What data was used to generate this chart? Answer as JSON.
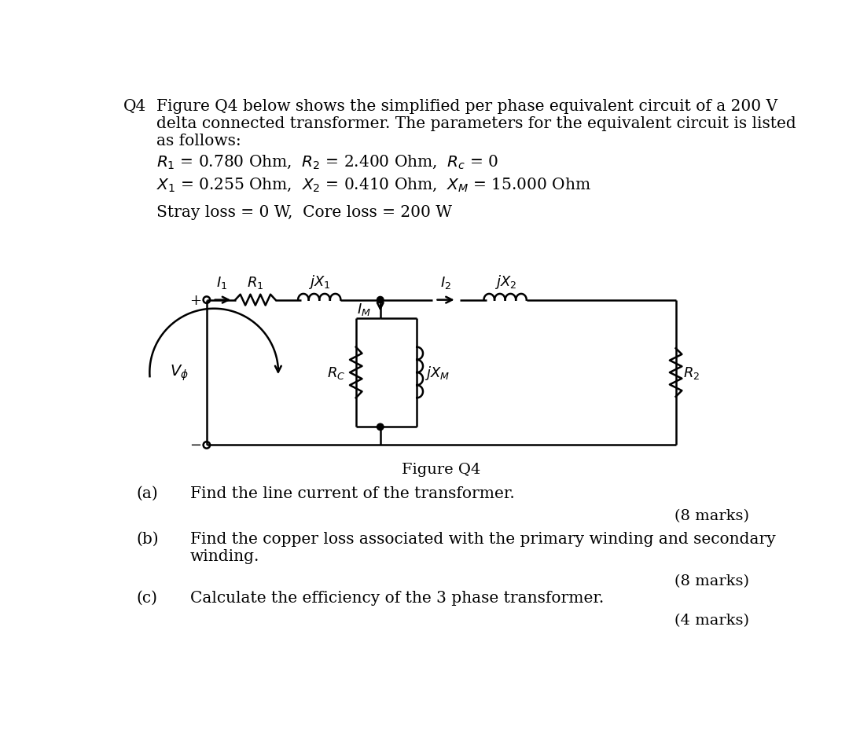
{
  "bg_color": "#ffffff",
  "line_color": "#000000",
  "figure_label": "Figure Q4",
  "top_text": "Figure Q4 below shows the simplified per phase equivalent circuit of a 200 V\ndelta connected transformer. The parameters for the equivalent circuit is listed\nas follows:",
  "q4_label": "Q4",
  "param1": "R₁ = 0.780 Ohm,  R₂ = 2.400 Ohm,  R⁣ = 0",
  "param2": "X₁ = 0.255 Ohm,  X₂ = 0.410 Ohm,  Xₘ = 15.000 Ohm",
  "param3": "Stray loss = 0 W,  Core loss = 200 W",
  "qa_label": "(a)",
  "qa_text": "Find the line current of the transformer.",
  "qa_marks": "(8 marks)",
  "qb_label": "(b)",
  "qb_text": "Find the copper loss associated with the primary winding and secondary\nwinding.",
  "qb_marks": "(8 marks)",
  "qc_label": "(c)",
  "qc_text": "Calculate the efficiency of the 3 phase transformer.",
  "qc_marks": "(4 marks)"
}
